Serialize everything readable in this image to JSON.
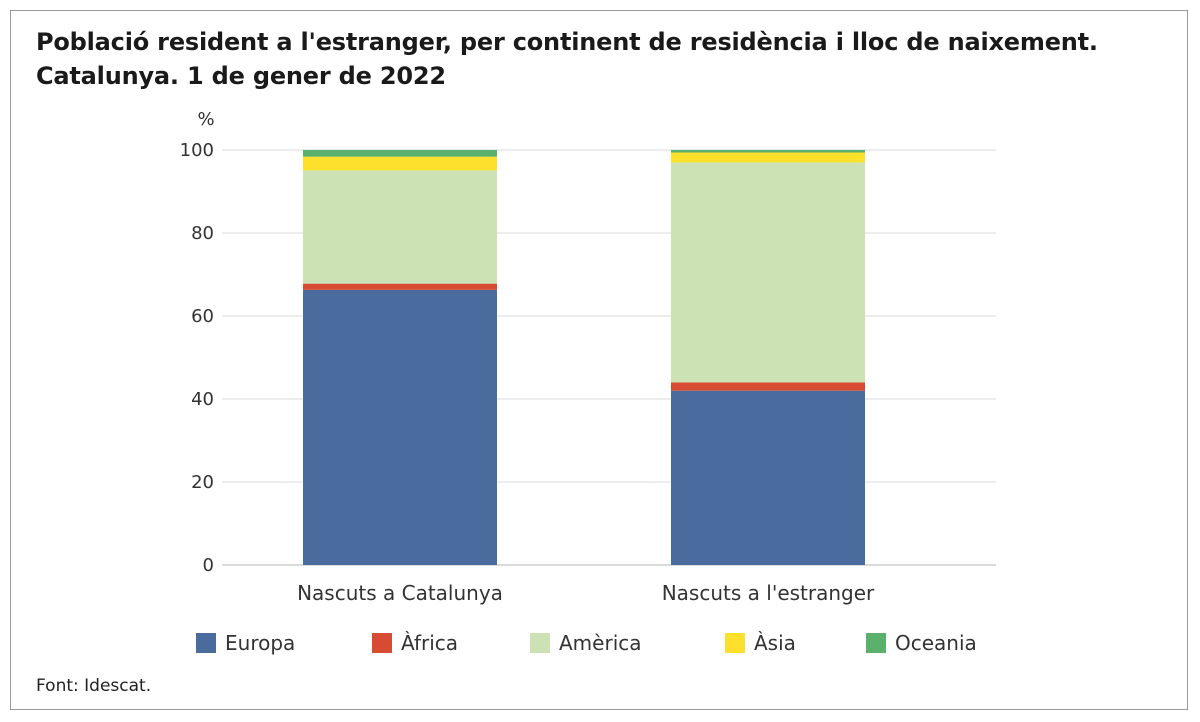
{
  "title_line1": "Població resident a l'estranger, per continent de residència i lloc de naixement.",
  "title_line2": "Catalunya. 1 de gener de 2022",
  "source": "Font: Idescat.",
  "chart_data": {
    "type": "bar",
    "stacked": true,
    "ylabel": "%",
    "ylim": [
      0,
      100
    ],
    "yticks": [
      0,
      20,
      40,
      60,
      80,
      100
    ],
    "grid": true,
    "legend_position": "bottom",
    "categories": [
      "Nascuts a Catalunya",
      "Nascuts a l'estranger"
    ],
    "series": [
      {
        "name": "Europa",
        "color": "#4a6b9e",
        "values": [
          66.3,
          42.0
        ]
      },
      {
        "name": "Àfrica",
        "color": "#d84b33",
        "values": [
          1.5,
          2.0
        ]
      },
      {
        "name": "Amèrica",
        "color": "#cce2b4",
        "values": [
          27.3,
          53.0
        ]
      },
      {
        "name": "Àsia",
        "color": "#fce02c",
        "values": [
          3.3,
          2.4
        ]
      },
      {
        "name": "Oceania",
        "color": "#5bb06b",
        "values": [
          1.6,
          0.6
        ]
      }
    ]
  }
}
